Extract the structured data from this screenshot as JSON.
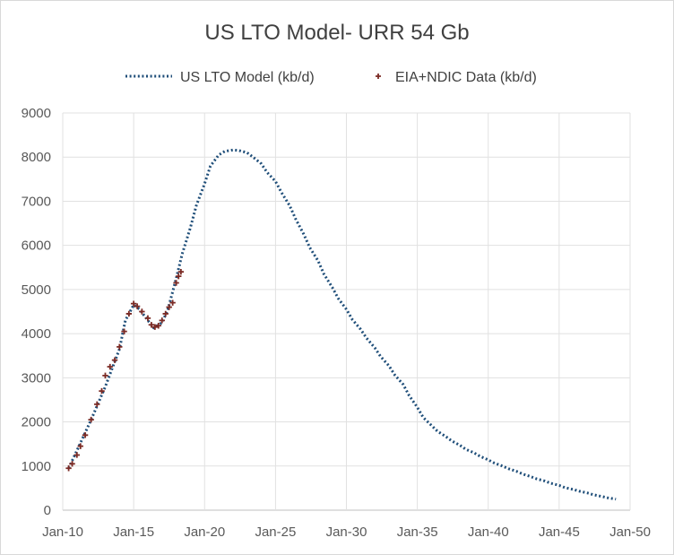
{
  "chart_data": {
    "type": "line",
    "title": "US LTO Model- URR 54 Gb",
    "xlabel": "",
    "ylabel": "",
    "x_axis": {
      "type": "date",
      "range": [
        "2010-01",
        "2050-01"
      ],
      "ticks": [
        "2010-01",
        "2015-01",
        "2020-01",
        "2025-01",
        "2030-01",
        "2035-01",
        "2040-01",
        "2045-01",
        "2050-01"
      ],
      "tick_labels": [
        "Jan-10",
        "Jan-15",
        "Jan-20",
        "Jan-25",
        "Jan-30",
        "Jan-35",
        "Jan-40",
        "Jan-45",
        "Jan-50"
      ]
    },
    "y_axis": {
      "range": [
        0,
        9000
      ],
      "ticks": [
        0,
        1000,
        2000,
        3000,
        4000,
        5000,
        6000,
        7000,
        8000,
        9000
      ],
      "tick_labels": [
        "0",
        "1000",
        "2000",
        "3000",
        "4000",
        "5000",
        "6000",
        "7000",
        "8000",
        "9000"
      ]
    },
    "grid": true,
    "legend": {
      "position": "top",
      "entries": [
        {
          "label": "US LTO Model (kb/d)",
          "marker": "dotted-line",
          "color": "#1f4e79"
        },
        {
          "label": "EIA+NDIC Data (kb/d)",
          "marker": "plus",
          "color": "#7b2a24"
        }
      ]
    },
    "series": [
      {
        "name": "US LTO Model (kb/d)",
        "style": "dotted",
        "color": "#1f4e79",
        "points": [
          [
            "2010-06",
            950
          ],
          [
            "2011-01",
            1350
          ],
          [
            "2012-01",
            2050
          ],
          [
            "2013-01",
            2800
          ],
          [
            "2014-01",
            3650
          ],
          [
            "2014-06",
            4300
          ],
          [
            "2015-01",
            4650
          ],
          [
            "2015-06",
            4550
          ],
          [
            "2016-01",
            4300
          ],
          [
            "2016-06",
            4130
          ],
          [
            "2017-01",
            4250
          ],
          [
            "2017-06",
            4550
          ],
          [
            "2018-01",
            5250
          ],
          [
            "2018-06",
            5800
          ],
          [
            "2019-01",
            6400
          ],
          [
            "2019-06",
            6900
          ],
          [
            "2020-01",
            7400
          ],
          [
            "2020-06",
            7800
          ],
          [
            "2021-01",
            8050
          ],
          [
            "2021-06",
            8130
          ],
          [
            "2022-01",
            8160
          ],
          [
            "2022-06",
            8150
          ],
          [
            "2023-01",
            8100
          ],
          [
            "2023-06",
            8000
          ],
          [
            "2024-01",
            7850
          ],
          [
            "2024-06",
            7650
          ],
          [
            "2025-01",
            7450
          ],
          [
            "2025-06",
            7200
          ],
          [
            "2026-01",
            6900
          ],
          [
            "2026-06",
            6600
          ],
          [
            "2027-01",
            6250
          ],
          [
            "2027-06",
            5950
          ],
          [
            "2028-01",
            5650
          ],
          [
            "2028-06",
            5350
          ],
          [
            "2029-01",
            5050
          ],
          [
            "2029-06",
            4800
          ],
          [
            "2030-01",
            4550
          ],
          [
            "2030-06",
            4320
          ],
          [
            "2031-01",
            4100
          ],
          [
            "2031-06",
            3900
          ],
          [
            "2032-01",
            3680
          ],
          [
            "2032-06",
            3480
          ],
          [
            "2033-01",
            3270
          ],
          [
            "2033-06",
            3060
          ],
          [
            "2034-01",
            2850
          ],
          [
            "2034-06",
            2600
          ],
          [
            "2035-01",
            2330
          ],
          [
            "2035-06",
            2100
          ],
          [
            "2036-01",
            1920
          ],
          [
            "2036-06",
            1790
          ],
          [
            "2037-01",
            1670
          ],
          [
            "2037-06",
            1570
          ],
          [
            "2038-01",
            1470
          ],
          [
            "2038-06",
            1380
          ],
          [
            "2039-01",
            1300
          ],
          [
            "2039-06",
            1220
          ],
          [
            "2040-01",
            1140
          ],
          [
            "2040-06",
            1070
          ],
          [
            "2041-01",
            1000
          ],
          [
            "2041-06",
            940
          ],
          [
            "2042-01",
            880
          ],
          [
            "2042-06",
            820
          ],
          [
            "2043-01",
            760
          ],
          [
            "2043-06",
            710
          ],
          [
            "2044-01",
            660
          ],
          [
            "2044-06",
            610
          ],
          [
            "2045-01",
            560
          ],
          [
            "2045-06",
            510
          ],
          [
            "2046-01",
            470
          ],
          [
            "2046-06",
            430
          ],
          [
            "2047-01",
            390
          ],
          [
            "2047-06",
            350
          ],
          [
            "2048-01",
            310
          ],
          [
            "2048-06",
            280
          ],
          [
            "2049-01",
            250
          ]
        ]
      },
      {
        "name": "EIA+NDIC Data (kb/d)",
        "style": "markers",
        "color": "#7b2a24",
        "points": [
          [
            "2010-06",
            950
          ],
          [
            "2010-09",
            1050
          ],
          [
            "2011-01",
            1250
          ],
          [
            "2011-04",
            1450
          ],
          [
            "2011-08",
            1700
          ],
          [
            "2012-01",
            2050
          ],
          [
            "2012-06",
            2400
          ],
          [
            "2012-10",
            2700
          ],
          [
            "2013-01",
            3050
          ],
          [
            "2013-05",
            3250
          ],
          [
            "2013-09",
            3400
          ],
          [
            "2014-01",
            3700
          ],
          [
            "2014-05",
            4050
          ],
          [
            "2014-09",
            4450
          ],
          [
            "2015-01",
            4680
          ],
          [
            "2015-04",
            4620
          ],
          [
            "2015-08",
            4500
          ],
          [
            "2016-01",
            4350
          ],
          [
            "2016-04",
            4200
          ],
          [
            "2016-07",
            4150
          ],
          [
            "2016-10",
            4180
          ],
          [
            "2017-01",
            4300
          ],
          [
            "2017-04",
            4450
          ],
          [
            "2017-07",
            4600
          ],
          [
            "2017-10",
            4700
          ],
          [
            "2018-01",
            5150
          ],
          [
            "2018-03",
            5300
          ],
          [
            "2018-05",
            5400
          ]
        ]
      }
    ]
  }
}
